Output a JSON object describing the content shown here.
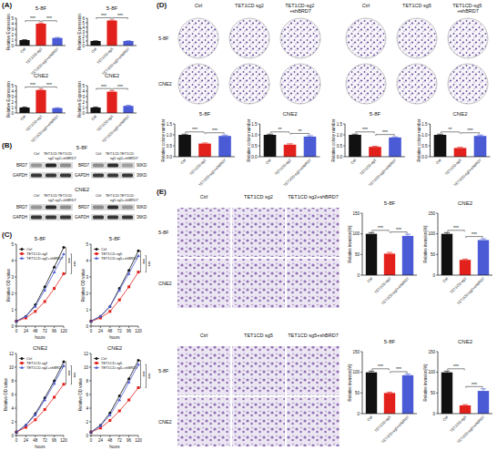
{
  "panel_labels": [
    "(A)",
    "(B)",
    "(C)",
    "(D)",
    "(E)"
  ],
  "chart_data": [
    {
      "type": "bar",
      "title": "5-8F",
      "ylabel": "Relative Expression",
      "categories": [
        "Ctrl",
        "TET1CD-sg2",
        "TET1CD-sg2+shBRD7"
      ],
      "values": [
        1.0,
        4.0,
        1.4
      ],
      "errors": [
        0.08,
        0.12,
        0.08
      ],
      "colors": [
        "#111111",
        "#e3211c",
        "#4b5bd6"
      ],
      "ylim": [
        0,
        5
      ],
      "yticks": [
        0,
        1,
        2,
        3,
        4,
        5
      ],
      "annotations": [
        {
          "text": "***",
          "between": [
            0,
            1
          ]
        },
        {
          "text": "***",
          "between": [
            1,
            2
          ]
        }
      ]
    },
    {
      "type": "bar",
      "title": "5-8F",
      "ylabel": "Relative Expression",
      "categories": [
        "Ctrl",
        "TET1CD-sg5",
        "TET1CD-sg5+shBRD7"
      ],
      "values": [
        1.0,
        5.5,
        1.0
      ],
      "errors": [
        0.05,
        0.1,
        0.05
      ],
      "colors": [
        "#111111",
        "#e3211c",
        "#4b5bd6"
      ],
      "ylim": [
        0,
        6
      ],
      "yticks": [
        0,
        1,
        2,
        3,
        4,
        5,
        6
      ],
      "annotations": [
        {
          "text": "***",
          "between": [
            0,
            1
          ]
        },
        {
          "text": "***",
          "between": [
            1,
            2
          ]
        }
      ]
    },
    {
      "type": "bar",
      "title": "CNE2",
      "ylabel": "Relative Expression",
      "categories": [
        "Ctrl",
        "TET1CD-sg2",
        "TET1CD-sg2+shBRD7"
      ],
      "values": [
        1.0,
        4.2,
        0.9
      ],
      "errors": [
        0.1,
        0.15,
        0.05
      ],
      "colors": [
        "#111111",
        "#e3211c",
        "#4b5bd6"
      ],
      "ylim": [
        0,
        5
      ],
      "yticks": [
        0,
        1,
        2,
        3,
        4,
        5
      ],
      "annotations": [
        {
          "text": "***",
          "between": [
            0,
            1
          ]
        },
        {
          "text": "***",
          "between": [
            1,
            2
          ]
        }
      ]
    },
    {
      "type": "bar",
      "title": "CNE2",
      "ylabel": "Relative Expression",
      "categories": [
        "Ctrl",
        "TET1CD-sg5",
        "TET1CD-sg5+shBRD7"
      ],
      "values": [
        1.0,
        3.9,
        1.3
      ],
      "errors": [
        0.1,
        0.15,
        0.1
      ],
      "colors": [
        "#111111",
        "#e3211c",
        "#4b5bd6"
      ],
      "ylim": [
        0,
        5
      ],
      "yticks": [
        0,
        1,
        2,
        3,
        4,
        5
      ],
      "annotations": [
        {
          "text": "***",
          "between": [
            0,
            1
          ]
        },
        {
          "text": "***",
          "between": [
            1,
            2
          ]
        }
      ]
    },
    {
      "type": "line",
      "title": "5-8F",
      "xlabel": "hours",
      "ylabel": "Relative OD value",
      "x": [
        0,
        24,
        48,
        72,
        96,
        120
      ],
      "xlim": [
        0,
        120
      ],
      "xticks": [
        0,
        24,
        48,
        72,
        96,
        120
      ],
      "ylim": [
        0,
        5
      ],
      "yticks": [
        0,
        1,
        2,
        3,
        4,
        5
      ],
      "legend": "upper left",
      "series": [
        {
          "name": "Ctrl",
          "color": "#111111",
          "marker": "circle",
          "values": [
            0.3,
            0.6,
            1.3,
            2.4,
            3.6,
            4.8
          ]
        },
        {
          "name": "TET1CD-sg2",
          "color": "#e3211c",
          "marker": "square",
          "values": [
            0.3,
            0.5,
            0.9,
            1.5,
            2.3,
            3.2
          ]
        },
        {
          "name": "TET1CD-sg2+shBRD7",
          "color": "#4b5bd6",
          "marker": "triangle",
          "values": [
            0.3,
            0.6,
            1.2,
            2.2,
            3.3,
            4.4
          ]
        }
      ],
      "annotations": [
        {
          "text": "***",
          "between": [
            0,
            1
          ]
        },
        {
          "text": "***",
          "between": [
            1,
            2
          ]
        }
      ]
    },
    {
      "type": "line",
      "title": "5-8F",
      "xlabel": "hours",
      "ylabel": "Relative OD value",
      "x": [
        0,
        24,
        48,
        72,
        96,
        120
      ],
      "xlim": [
        0,
        120
      ],
      "xticks": [
        0,
        24,
        48,
        72,
        96,
        120
      ],
      "ylim": [
        0,
        5
      ],
      "yticks": [
        0,
        1,
        2,
        3,
        4,
        5
      ],
      "legend": "upper left",
      "series": [
        {
          "name": "Ctrl",
          "color": "#111111",
          "marker": "circle",
          "values": [
            0.3,
            0.6,
            1.2,
            2.3,
            3.4,
            4.6
          ]
        },
        {
          "name": "TET1CD-sg5",
          "color": "#e3211c",
          "marker": "square",
          "values": [
            0.3,
            0.5,
            0.9,
            1.6,
            2.4,
            3.3
          ]
        },
        {
          "name": "TET1CD-sg5+shBRD7",
          "color": "#4b5bd6",
          "marker": "triangle",
          "values": [
            0.3,
            0.6,
            1.2,
            2.2,
            3.2,
            4.3
          ]
        }
      ],
      "annotations": [
        {
          "text": "***",
          "between": [
            0,
            1
          ]
        },
        {
          "text": "***",
          "between": [
            1,
            2
          ]
        }
      ]
    },
    {
      "type": "line",
      "title": "CNE2",
      "xlabel": "hours",
      "ylabel": "Relative OD value",
      "x": [
        0,
        24,
        48,
        72,
        96,
        120
      ],
      "xlim": [
        0,
        120
      ],
      "xticks": [
        0,
        24,
        48,
        72,
        96,
        120
      ],
      "ylim": [
        0,
        12
      ],
      "yticks": [
        0,
        2,
        4,
        6,
        8,
        10,
        12
      ],
      "legend": "upper left",
      "series": [
        {
          "name": "Ctrl",
          "color": "#111111",
          "marker": "circle",
          "values": [
            0.5,
            1.5,
            3.2,
            5.5,
            8.0,
            10.8
          ]
        },
        {
          "name": "TET1CD-sg2",
          "color": "#e3211c",
          "marker": "square",
          "values": [
            0.5,
            1.2,
            2.3,
            3.8,
            5.6,
            7.5
          ]
        },
        {
          "name": "TET1CD-sg2+shBRD7",
          "color": "#4b5bd6",
          "marker": "triangle",
          "values": [
            0.5,
            1.5,
            3.0,
            5.2,
            7.6,
            10.2
          ]
        }
      ],
      "annotations": [
        {
          "text": "***",
          "between": [
            0,
            1
          ]
        },
        {
          "text": "***",
          "between": [
            1,
            2
          ]
        }
      ]
    },
    {
      "type": "line",
      "title": "CNE2",
      "xlabel": "hours",
      "ylabel": "Relative OD value",
      "x": [
        0,
        24,
        48,
        72,
        96,
        120
      ],
      "xlim": [
        0,
        120
      ],
      "xticks": [
        0,
        24,
        48,
        72,
        96,
        120
      ],
      "ylim": [
        0,
        12
      ],
      "yticks": [
        0,
        2,
        4,
        6,
        8,
        10,
        12
      ],
      "legend": "upper left",
      "series": [
        {
          "name": "Ctrl",
          "color": "#111111",
          "marker": "circle",
          "values": [
            0.5,
            1.5,
            3.3,
            5.8,
            8.3,
            11.0
          ]
        },
        {
          "name": "TET1CD-sg5",
          "color": "#e3211c",
          "marker": "square",
          "values": [
            0.5,
            1.1,
            2.2,
            3.6,
            5.2,
            7.0
          ]
        },
        {
          "name": "TET1CD-sg5+shBRD7",
          "color": "#4b5bd6",
          "marker": "triangle",
          "values": [
            0.5,
            1.4,
            3.0,
            5.2,
            7.8,
            10.4
          ]
        }
      ],
      "annotations": [
        {
          "text": "***",
          "between": [
            0,
            1
          ]
        },
        {
          "text": "***",
          "between": [
            1,
            2
          ]
        }
      ]
    },
    {
      "type": "bar",
      "title": "5-8F",
      "ylabel": "Relative colony number",
      "categories": [
        "Ctrl",
        "TET1CD-sg2",
        "TET1CD-sg2+shBRD7"
      ],
      "values": [
        1.0,
        0.6,
        0.95
      ],
      "errors": [
        0.03,
        0.03,
        0.04
      ],
      "colors": [
        "#111111",
        "#e3211c",
        "#4b5bd6"
      ],
      "ylim": [
        0,
        1.5
      ],
      "yticks": [
        {
          "value": 0,
          "label": "0.0"
        },
        {
          "value": 0.5,
          "label": "0.5"
        },
        {
          "value": 1,
          "label": "1.0"
        },
        {
          "value": 1.5,
          "label": "1.5"
        }
      ],
      "annotations": [
        {
          "text": "***",
          "between": [
            0,
            1
          ]
        },
        {
          "text": "***",
          "between": [
            1,
            2
          ]
        }
      ]
    },
    {
      "type": "bar",
      "title": "CNE2",
      "ylabel": "Relative colony number",
      "categories": [
        "Ctrl",
        "TET1CD-sg2",
        "TET1CD-sg2+shBRD7"
      ],
      "values": [
        1.0,
        0.55,
        0.92
      ],
      "errors": [
        0.03,
        0.04,
        0.04
      ],
      "colors": [
        "#111111",
        "#e3211c",
        "#4b5bd6"
      ],
      "ylim": [
        0,
        1.5
      ],
      "yticks": [
        {
          "value": 0,
          "label": "0.0"
        },
        {
          "value": 0.5,
          "label": "0.5"
        },
        {
          "value": 1,
          "label": "1.0"
        },
        {
          "value": 1.5,
          "label": "1.5"
        }
      ],
      "annotations": [
        {
          "text": "**",
          "between": [
            0,
            1
          ]
        },
        {
          "text": "**",
          "between": [
            1,
            2
          ]
        }
      ]
    },
    {
      "type": "bar",
      "title": "5-8F",
      "ylabel": "Relative colony number",
      "categories": [
        "Ctrl",
        "TET1CD-sg5",
        "TET1CD-sg5+shBRD7"
      ],
      "values": [
        1.0,
        0.45,
        0.88
      ],
      "errors": [
        0.03,
        0.03,
        0.03
      ],
      "colors": [
        "#111111",
        "#e3211c",
        "#4b5bd6"
      ],
      "ylim": [
        0,
        1.5
      ],
      "yticks": [
        {
          "value": 0,
          "label": "0.0"
        },
        {
          "value": 0.5,
          "label": "0.5"
        },
        {
          "value": 1,
          "label": "1.0"
        },
        {
          "value": 1.5,
          "label": "1.5"
        }
      ],
      "annotations": [
        {
          "text": "***",
          "between": [
            0,
            1
          ]
        },
        {
          "text": "***",
          "between": [
            1,
            2
          ]
        }
      ]
    },
    {
      "type": "bar",
      "title": "CNE2",
      "ylabel": "Relative colony number",
      "categories": [
        "Ctrl",
        "TET1CD-sg5",
        "TET1CD-sg5+shBRD7"
      ],
      "values": [
        1.0,
        0.4,
        0.95
      ],
      "errors": [
        0.03,
        0.03,
        0.04
      ],
      "colors": [
        "#111111",
        "#e3211c",
        "#4b5bd6"
      ],
      "ylim": [
        0,
        1.5
      ],
      "yticks": [
        {
          "value": 0,
          "label": "0.0"
        },
        {
          "value": 0.5,
          "label": "0.5"
        },
        {
          "value": 1,
          "label": "1.0"
        },
        {
          "value": 1.5,
          "label": "1.5"
        }
      ],
      "annotations": [
        {
          "text": "**",
          "between": [
            0,
            1
          ]
        },
        {
          "text": "***",
          "between": [
            1,
            2
          ]
        }
      ]
    },
    {
      "type": "bar",
      "title": "5-8F",
      "ylabel": "Relative invasion(%)",
      "categories": [
        "Ctrl",
        "TET1CD-sg2",
        "TET1CD-sg2+shBRD7"
      ],
      "values": [
        100,
        52,
        95
      ],
      "errors": [
        3,
        3,
        4
      ],
      "colors": [
        "#111111",
        "#e3211c",
        "#4b5bd6"
      ],
      "ylim": [
        0,
        150
      ],
      "yticks": [
        0,
        50,
        100,
        150
      ],
      "annotations": [
        {
          "text": "***",
          "between": [
            0,
            1
          ]
        },
        {
          "text": "***",
          "between": [
            1,
            2
          ]
        }
      ]
    },
    {
      "type": "bar",
      "title": "CNE2",
      "ylabel": "Relative invasion(%)",
      "categories": [
        "Ctrl",
        "TET1CD-sg2",
        "TET1CD-sg2+shBRD7"
      ],
      "values": [
        100,
        37,
        85
      ],
      "errors": [
        3,
        2,
        3
      ],
      "colors": [
        "#111111",
        "#e3211c",
        "#4b5bd6"
      ],
      "ylim": [
        0,
        150
      ],
      "yticks": [
        0,
        50,
        100,
        150
      ],
      "annotations": [
        {
          "text": "***",
          "between": [
            0,
            1
          ]
        },
        {
          "text": "***",
          "between": [
            1,
            2
          ]
        }
      ]
    },
    {
      "type": "bar",
      "title": "5-8F",
      "ylabel": "Relative invasion(%)",
      "categories": [
        "Ctrl",
        "TET1CD-sg5",
        "TET1CD-sg5+shBRD7"
      ],
      "values": [
        100,
        50,
        93
      ],
      "errors": [
        3,
        2,
        3
      ],
      "colors": [
        "#111111",
        "#e3211c",
        "#4b5bd6"
      ],
      "ylim": [
        0,
        150
      ],
      "yticks": [
        0,
        50,
        100,
        150
      ],
      "annotations": [
        {
          "text": "***",
          "between": [
            0,
            1
          ]
        },
        {
          "text": "***",
          "between": [
            1,
            2
          ]
        }
      ]
    },
    {
      "type": "bar",
      "title": "CNE2",
      "ylabel": "Relative invasion(%)",
      "categories": [
        "Ctrl",
        "TET1CD-sg5",
        "TET1CD-sg5+shBRD7"
      ],
      "values": [
        100,
        20,
        55
      ],
      "errors": [
        3,
        2,
        5
      ],
      "colors": [
        "#111111",
        "#e3211c",
        "#4b5bd6"
      ],
      "ylim": [
        0,
        150
      ],
      "yticks": [
        0,
        50,
        100,
        150
      ],
      "annotations": [
        {
          "text": "***",
          "between": [
            0,
            1
          ]
        },
        {
          "text": "***",
          "between": [
            1,
            2
          ]
        }
      ]
    }
  ],
  "blots": [
    {
      "cell": "5-8F",
      "sizes": [
        "90KD",
        "36KD"
      ],
      "groups": [
        {
          "lanes": [
            "Ctrl",
            "TET1CD sg2",
            "TET1CD sg2+shBRD7"
          ],
          "bands": [
            {
              "protein": "BRD7",
              "intensity": [
                0.35,
                0.95,
                0.4
              ]
            },
            {
              "protein": "GAPDH",
              "intensity": [
                0.85,
                0.85,
                0.85
              ]
            }
          ]
        },
        {
          "lanes": [
            "Ctrl",
            "TET1CD sg5",
            "TET1CD sg5+shBRD7"
          ],
          "bands": [
            {
              "protein": "BRD7",
              "intensity": [
                0.4,
                0.9,
                0.3
              ]
            },
            {
              "protein": "GAPDH",
              "intensity": [
                0.85,
                0.85,
                0.85
              ]
            }
          ]
        }
      ]
    },
    {
      "cell": "CNE2",
      "sizes": [
        "90KD",
        "36KD"
      ],
      "groups": [
        {
          "lanes": [
            "Ctrl",
            "TET1CD sg2",
            "TET1CD sg2+shBRD7"
          ],
          "bands": [
            {
              "protein": "BRD7",
              "intensity": [
                0.35,
                0.9,
                0.4
              ]
            },
            {
              "protein": "GAPDH",
              "intensity": [
                0.85,
                0.85,
                0.85
              ]
            }
          ]
        },
        {
          "lanes": [
            "Ctrl",
            "TET1CD sg5",
            "TET1CD sg5+shBRD7"
          ],
          "bands": [
            {
              "protein": "BRD7",
              "intensity": [
                0.4,
                0.9,
                0.35
              ]
            },
            {
              "protein": "GAPDH",
              "intensity": [
                0.85,
                0.85,
                0.85
              ]
            }
          ]
        }
      ]
    }
  ],
  "colonies": {
    "rows": [
      "5-8F",
      "CNE2"
    ],
    "groups": [
      [
        "Ctrl",
        "TET1CD sg2",
        "TET1CD-sg2 +shBRD7"
      ],
      [
        "Ctrl",
        "TET1CD sg5",
        "TET1CD-sg5 +shBRD7"
      ]
    ]
  },
  "invasion": {
    "rows": [
      "5-8F",
      "CNE2"
    ],
    "groups": [
      [
        "Ctrl",
        "TET1CD sg2",
        "TET1CD sg2+shBRD7"
      ],
      [
        "Ctrl",
        "TET1CD sg5",
        "TET1CD sg5+shBRD7"
      ]
    ]
  }
}
